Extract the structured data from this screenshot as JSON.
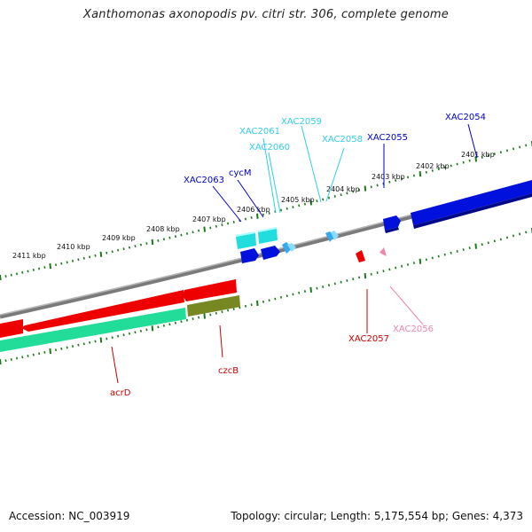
{
  "title": "Xanthomonas axonopodis pv. citri str. 306, complete genome",
  "footer": {
    "accession": "Accession: NC_003919",
    "summary": "Topology: circular; Length: 5,175,554 bp; Genes: 4,373"
  },
  "ticks": [
    "2401 kbp",
    "2402 kbp",
    "2403 kbp",
    "2404 kbp",
    "2405 kbp",
    "2406 kbp",
    "2407 kbp",
    "2408 kbp",
    "2409 kbp",
    "2410 kbp",
    "2411 kbp"
  ],
  "genes": [
    {
      "id": "g-XAC2054",
      "label": "XAC2054",
      "color": "#0000cc"
    },
    {
      "id": "g-XAC2055",
      "label": "XAC2055",
      "color": "#0000cc"
    },
    {
      "id": "g-XAC2056",
      "label": "XAC2056",
      "color": "#ee88aa"
    },
    {
      "id": "g-XAC2057",
      "label": "XAC2057",
      "color": "#cc0000"
    },
    {
      "id": "g-XAC2058",
      "label": "XAC2058",
      "color": "#33ccee"
    },
    {
      "id": "g-XAC2059",
      "label": "XAC2059",
      "color": "#33ccee"
    },
    {
      "id": "g-XAC2060",
      "label": "XAC2060",
      "color": "#33ccee"
    },
    {
      "id": "g-XAC2061",
      "label": "XAC2061",
      "color": "#33ccee"
    },
    {
      "id": "g-cycM",
      "label": "cycM",
      "color": "#0000cc"
    },
    {
      "id": "g-XAC2063",
      "label": "XAC2063",
      "color": "#0000cc"
    },
    {
      "id": "g-czcB",
      "label": "czcB",
      "color": "#cc0000"
    },
    {
      "id": "g-acrD",
      "label": "acrD",
      "color": "#cc0000"
    }
  ],
  "colors": {
    "backbone": "#808080",
    "tick": "#1a7a1a",
    "forward_blue": "#0011dd",
    "cyan": "#22dddd",
    "red": "#ee0000",
    "green": "#22dd99",
    "olive": "#778822",
    "pink": "#ee88aa"
  }
}
